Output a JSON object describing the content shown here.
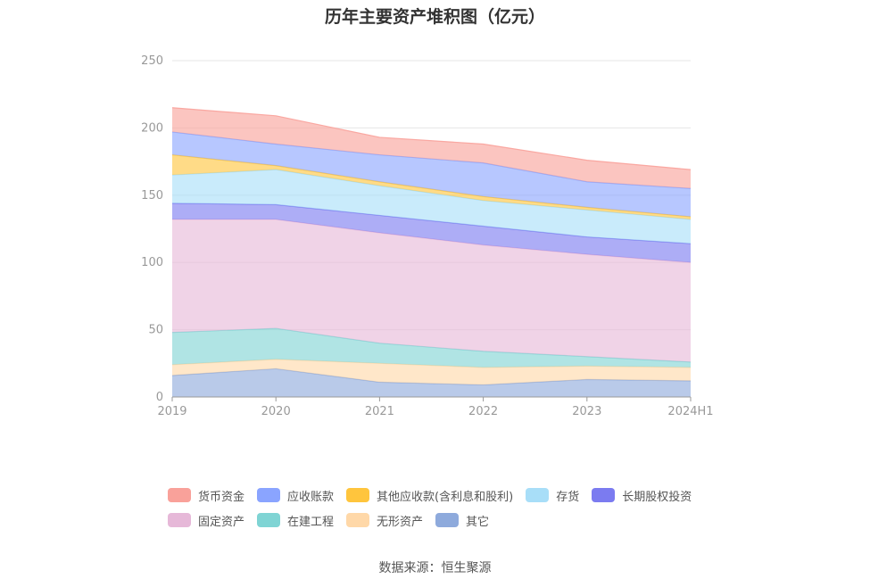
{
  "title": "历年主要资产堆积图（亿元）",
  "source": "数据来源：恒生聚源",
  "chart_data": {
    "type": "area",
    "stacked": true,
    "x": [
      "2019",
      "2020",
      "2021",
      "2022",
      "2023",
      "2024H1"
    ],
    "ylim": [
      0,
      250
    ],
    "yticks": [
      0,
      50,
      100,
      150,
      200,
      250
    ],
    "grid": true,
    "legend_position": "bottom",
    "series": [
      {
        "name": "其它",
        "color": "#8EAADC",
        "values": [
          16,
          21,
          11,
          9,
          13,
          12
        ]
      },
      {
        "name": "无形资产",
        "color": "#FFD8A8",
        "values": [
          8,
          7,
          14,
          13,
          10,
          10
        ]
      },
      {
        "name": "在建工程",
        "color": "#7FD4D4",
        "values": [
          24,
          23,
          15,
          12,
          7,
          4
        ]
      },
      {
        "name": "固定资产",
        "color": "#E6B8D8",
        "values": [
          84,
          81,
          82,
          79,
          76,
          74
        ]
      },
      {
        "name": "长期股权投资",
        "color": "#7B7BF0",
        "values": [
          12,
          11,
          13,
          14,
          13,
          14
        ]
      },
      {
        "name": "存货",
        "color": "#A8DEF8",
        "values": [
          21,
          26,
          22,
          19,
          20,
          18
        ]
      },
      {
        "name": "其他应收款(含利息和股利)",
        "color": "#FFC53D",
        "values": [
          15,
          3,
          3,
          3,
          2,
          2
        ]
      },
      {
        "name": "应收账款",
        "color": "#8AA4FF",
        "values": [
          17,
          16,
          20,
          25,
          19,
          21
        ]
      },
      {
        "name": "货币资金",
        "color": "#F9A19A",
        "values": [
          18,
          21,
          13,
          14,
          16,
          14
        ]
      }
    ]
  },
  "legend_order": [
    [
      "货币资金",
      "应收账款",
      "其他应收款(含利息和股利)",
      "存货",
      "长期股权投资"
    ],
    [
      "固定资产",
      "在建工程",
      "无形资产",
      "其它"
    ]
  ]
}
